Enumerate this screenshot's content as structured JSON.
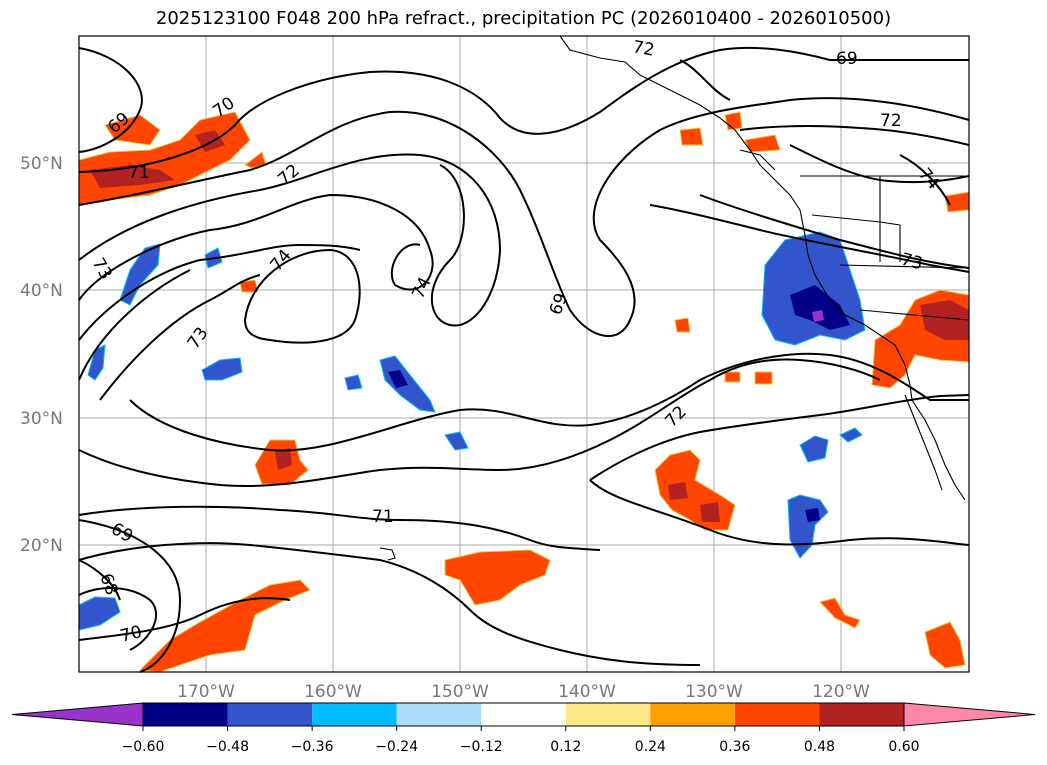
{
  "title": "2025123100 F048 200 hPa refract., precipitation PC (2026010400 - 2026010500)",
  "lat_ticks": [
    "50°N",
    "40°N",
    "30°N",
    "20°N"
  ],
  "lon_ticks": [
    "170°W",
    "160°W",
    "150°W",
    "140°W",
    "130°W",
    "120°W"
  ],
  "contour_labels": [
    "69",
    "70",
    "71",
    "72",
    "73",
    "74",
    "74",
    "73",
    "72",
    "69",
    "72",
    "71",
    "69",
    "68",
    "70",
    "69",
    "72",
    "73",
    "74"
  ],
  "colorbar": {
    "levels": [
      "−0.60",
      "−0.48",
      "−0.36",
      "−0.24",
      "−0.12",
      "0.12",
      "0.24",
      "0.36",
      "0.48",
      "0.60"
    ],
    "colors": [
      "#9933cc",
      "#000088",
      "#3355cc",
      "#00bbff",
      "#aaddf8",
      "#ffffff",
      "#ffe888",
      "#ffa000",
      "#ff4500",
      "#b22222",
      "#ff88aa"
    ]
  },
  "fill_colors": {
    "deep_blue": "#000088",
    "mid_blue": "#3355cc",
    "light_blue": "#00bbff",
    "orange": "#ff4500",
    "dark_red": "#b22222",
    "yellow_edge": "#ffe888"
  }
}
